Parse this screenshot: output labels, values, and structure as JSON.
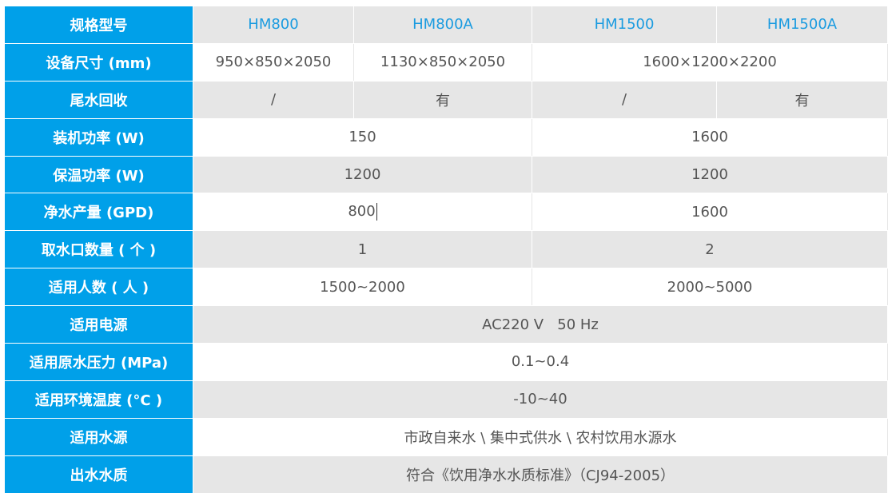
{
  "colors": {
    "label_bg": "#00a0e9",
    "model_text": "#1a9be0",
    "stripe": "#e6e6e6"
  },
  "rows": [
    {
      "label": "规格型号",
      "cells": [
        "HM800",
        "HM800A",
        "HM1500",
        "HM1500A"
      ]
    },
    {
      "label": "设备尺寸 (mm)",
      "cells": [
        "950×850×2050",
        "1130×850×2050",
        "1600×1200×2200"
      ]
    },
    {
      "label": "尾水回收",
      "cells": [
        "/",
        "有",
        "/",
        "有"
      ]
    },
    {
      "label": "装机功率 (W)",
      "cells": [
        "150",
        "1600"
      ]
    },
    {
      "label": "保温功率 (W)",
      "cells": [
        "1200",
        "1200"
      ]
    },
    {
      "label": "净水产量 (GPD)",
      "cells": [
        "800",
        "1600"
      ]
    },
    {
      "label": "取水口数量 ( 个 )",
      "cells": [
        "1",
        "2"
      ]
    },
    {
      "label": "适用人数 ( 人 )",
      "cells": [
        "1500~2000",
        "2000~5000"
      ]
    },
    {
      "label": "适用电源",
      "cells": [
        "AC220 V   50 Hz"
      ]
    },
    {
      "label": "适用原水压力 (MPa)",
      "cells": [
        "0.1~0.4"
      ]
    },
    {
      "label": "适用环境温度 (°C )",
      "cells": [
        "-10~40"
      ]
    },
    {
      "label": "适用水源",
      "cells": [
        "市政自来水 \\ 集中式供水 \\ 农村饮用水源水"
      ]
    },
    {
      "label": "出水水质",
      "cells": [
        "符合《饮用净水水质标准》（CJ94-2005）"
      ]
    }
  ]
}
